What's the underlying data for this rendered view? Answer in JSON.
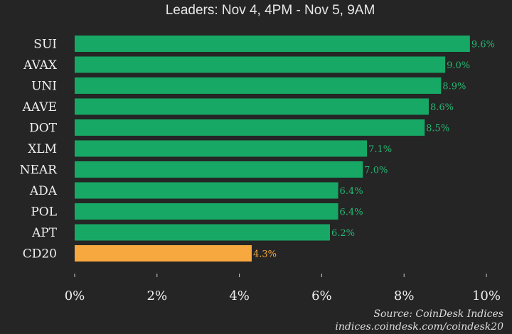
{
  "chart_data": {
    "type": "bar",
    "orientation": "horizontal",
    "subtitle": "Leaders: Nov 4, 4PM - Nov 5, 9AM",
    "categories": [
      "SUI",
      "AVAX",
      "UNI",
      "AAVE",
      "DOT",
      "XLM",
      "NEAR",
      "ADA",
      "POL",
      "APT",
      "CD20"
    ],
    "values": [
      9.6,
      9.0,
      8.9,
      8.6,
      8.5,
      7.1,
      7.0,
      6.4,
      6.4,
      6.2,
      4.3
    ],
    "data_labels": [
      "9.6%",
      "9.0%",
      "8.9%",
      "8.6%",
      "8.5%",
      "7.1%",
      "7.0%",
      "6.4%",
      "6.4%",
      "6.2%",
      "4.3%"
    ],
    "xlim": [
      0,
      10
    ],
    "xticks": [
      0,
      2,
      4,
      6,
      8,
      10
    ],
    "xtick_labels": [
      "0%",
      "2%",
      "4%",
      "6%",
      "8%",
      "10%"
    ],
    "grid": false,
    "colors": {
      "leader": "#17a865",
      "index": "#f7a83e",
      "leader_label": "#25b872",
      "index_label": "#f7a83e",
      "background": "#252525"
    },
    "source": "Source: CoinDesk Indices",
    "source_url": "indices.coindesk.com/coindesk20"
  }
}
